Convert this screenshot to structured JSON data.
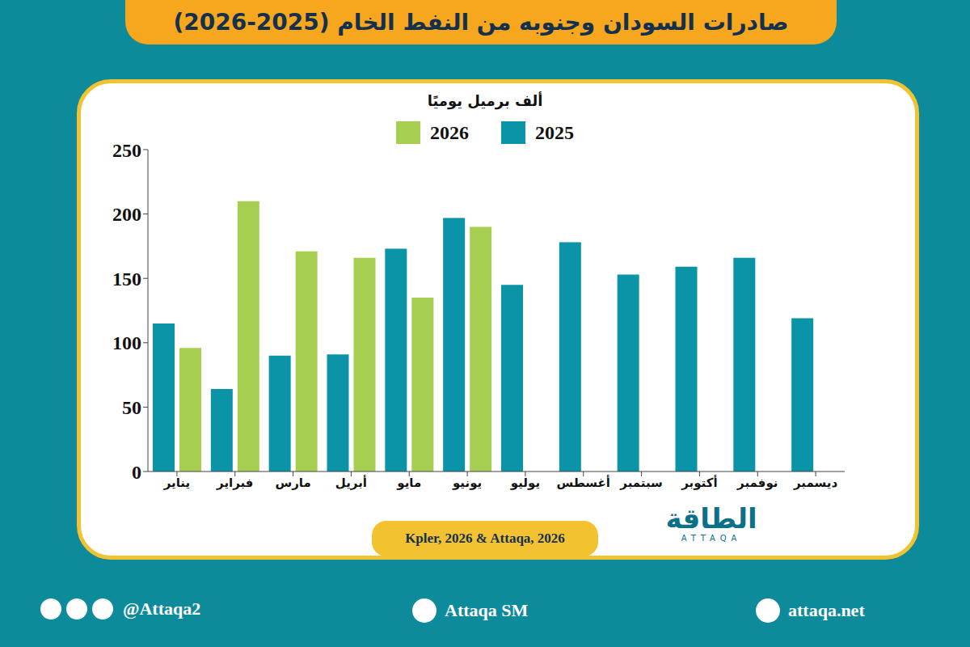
{
  "chart_data": {
    "type": "bar",
    "title": "صادرات السودان وجنوبه من النفط الخام (2025-2026)",
    "y_label": "ألف برميل يوميًا",
    "categories": [
      "يناير",
      "فبراير",
      "مارس",
      "أبريل",
      "مايو",
      "يونيو",
      "يوليو",
      "أغسطس",
      "سبتمبر",
      "أكتوبر",
      "نوفمبر",
      "ديسمبر"
    ],
    "series": [
      {
        "name": "2025",
        "color": "#0b93a7",
        "values": [
          115,
          64,
          90,
          91,
          173,
          197,
          145,
          178,
          153,
          159,
          166,
          119
        ]
      },
      {
        "name": "2026",
        "color": "#a6cf52",
        "values": [
          96,
          210,
          171,
          166,
          135,
          190,
          null,
          null,
          null,
          null,
          null,
          null
        ]
      }
    ],
    "ylim": [
      0,
      250
    ],
    "yticks": [
      0,
      50,
      100,
      150,
      200,
      250
    ],
    "grid": false,
    "legend": "top",
    "source": "Kpler, 2026 & Attaqa, 2026"
  },
  "logo": {
    "name": "الطاقة",
    "latin": "ATTAQA"
  },
  "footer": {
    "social": "@Attaqa2",
    "video": "Attaqa SM",
    "site": "attaqa.net"
  }
}
